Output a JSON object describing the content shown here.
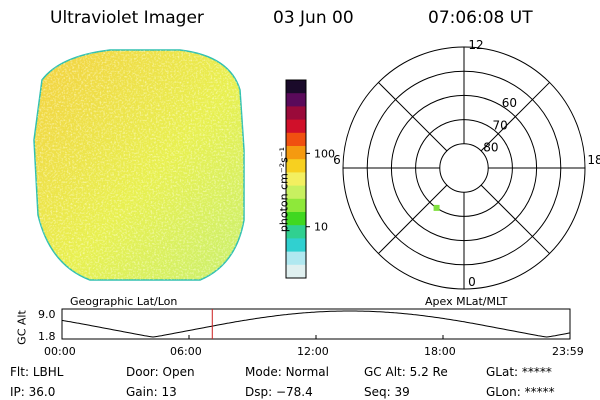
{
  "header": {
    "instrument": "Ultraviolet Imager",
    "date": "03 Jun 00",
    "time": "07:06:08 UT"
  },
  "colorbar": {
    "unit_label": "photon cm⁻²s⁻¹",
    "ticks": [
      {
        "label": "100",
        "value": 100
      },
      {
        "label": "10",
        "value": 10
      }
    ],
    "colors": [
      "#1a0a2a",
      "#5a0a5a",
      "#9a0a3a",
      "#d0102a",
      "#f05010",
      "#f59a10",
      "#f7d020",
      "#f3ef60",
      "#c8f060",
      "#8ee83a",
      "#40d820",
      "#30d090",
      "#30d0d0",
      "#b0e8f0",
      "#e0f0f0"
    ]
  },
  "polar_plot": {
    "mlt_labels": [
      {
        "label": "12",
        "mlt": 12
      },
      {
        "label": "18",
        "mlt": 18
      },
      {
        "label": "6",
        "mlt": 6
      },
      {
        "label": "0",
        "mlt": 0
      }
    ],
    "lat_labels": [
      {
        "label": "60",
        "mlat": 60
      },
      {
        "label": "70",
        "mlat": 70
      },
      {
        "label": "80",
        "mlat": 80
      }
    ],
    "rings_mlat": [
      50,
      60,
      70,
      80
    ],
    "point": {
      "mlat": 70,
      "mlt": 2.3,
      "color": "#80e040"
    }
  },
  "image_colors": {
    "base": "#e8f050",
    "warm": "#f4d040",
    "cool": "#c8f070",
    "edge": "#30c0b0"
  },
  "alt_plot": {
    "ylabel": "GC Alt",
    "y_ticks": [
      "9.0",
      "1.8"
    ],
    "left_label": "Geographic Lat/Lon",
    "right_label": "Apex MLat/MLT",
    "x_ticks": [
      "00:00",
      "06:00",
      "12:00",
      "18:00",
      "23:59"
    ],
    "marker_hour": 7.1,
    "marker_color": "#cc2020"
  },
  "info": {
    "filter": {
      "label": "Flt:",
      "value": "LBHL"
    },
    "ip": {
      "label": "IP:",
      "value": "36.0"
    },
    "door": {
      "label": "Door:",
      "value": "Open"
    },
    "gain": {
      "label": "Gain:",
      "value": "13"
    },
    "mode": {
      "label": "Mode:",
      "value": "Normal"
    },
    "dsp": {
      "label": "Dsp:",
      "value": "−78.4"
    },
    "gc_alt": {
      "label": "GC Alt:",
      "value": "5.2 Re"
    },
    "seq": {
      "label": "Seq:",
      "value": "39"
    },
    "glat": {
      "label": "GLat:",
      "value": "*****"
    },
    "glon": {
      "label": "GLon:",
      "value": "*****"
    }
  }
}
